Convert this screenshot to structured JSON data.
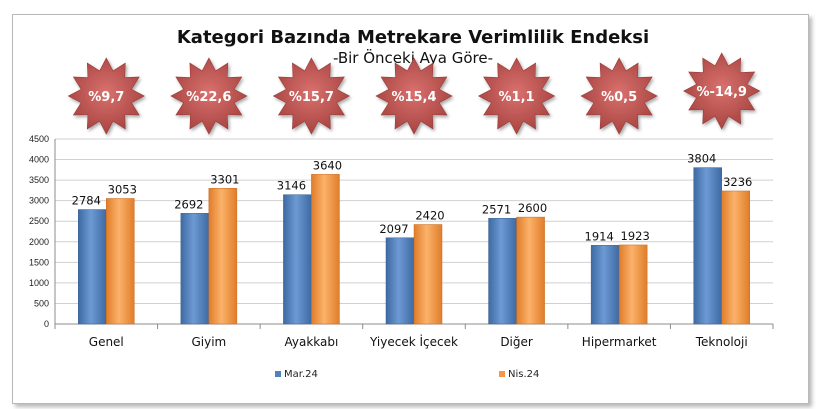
{
  "chart_data": {
    "type": "bar",
    "title": "Kategori Bazında Metrekare Verimlilik Endeksi",
    "subtitle": "-Bir Önceki Aya Göre-",
    "categories": [
      "Genel",
      "Giyim",
      "Ayakkabı",
      "Yiyecek İçecek",
      "Diğer",
      "Hipermarket",
      "Teknoloji"
    ],
    "series": [
      {
        "name": "Mar.24",
        "values": [
          2784,
          2692,
          3146,
          2097,
          2571,
          1914,
          3804
        ],
        "color": "#4F81BD"
      },
      {
        "name": "Nis.24",
        "values": [
          3053,
          3301,
          3640,
          2420,
          2600,
          1923,
          3236
        ],
        "color": "#F79646"
      }
    ],
    "change_badges": [
      "%9,7",
      "%22,6",
      "%15,7",
      "%15,4",
      "%1,1",
      "%0,5",
      "%-14,9"
    ],
    "badge_color": "#C0504D",
    "ylim": [
      0,
      4500
    ],
    "yticks": [
      0,
      500,
      1000,
      1500,
      2000,
      2500,
      3000,
      3500,
      4000,
      4500
    ],
    "grid": true,
    "legend_position": "bottom"
  }
}
